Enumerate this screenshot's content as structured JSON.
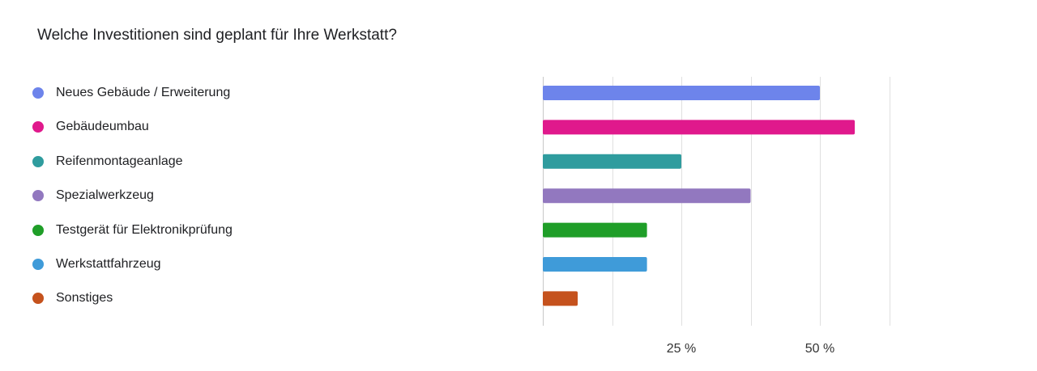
{
  "title": "Welche Investitionen sind geplant für Ihre Werkstatt?",
  "chart_data": {
    "type": "bar",
    "orientation": "horizontal",
    "title": "Welche Investitionen sind geplant für Ihre Werkstatt?",
    "xlabel": "",
    "ylabel": "",
    "unit": "%",
    "xlim": [
      0,
      62.5
    ],
    "grid": true,
    "legend_placement": "left",
    "tick_values": [
      25,
      50
    ],
    "tick_labels": [
      "25 %",
      "50 %"
    ],
    "categories": [
      "Neues Gebäude / Erweiterung",
      "Gebäudeumbau",
      "Reifenmontageanlage",
      "Spezialwerkzeug",
      "Testgerät für Elektronikprüfung",
      "Werkstattfahrzeug",
      "Sonstiges"
    ],
    "values": [
      50,
      56.3,
      25,
      37.5,
      18.8,
      18.8,
      6.3
    ],
    "colors": [
      "#6d84eb",
      "#e0198c",
      "#2f9c9e",
      "#9278bf",
      "#1f9e28",
      "#3f9bd9",
      "#c5521d"
    ]
  }
}
